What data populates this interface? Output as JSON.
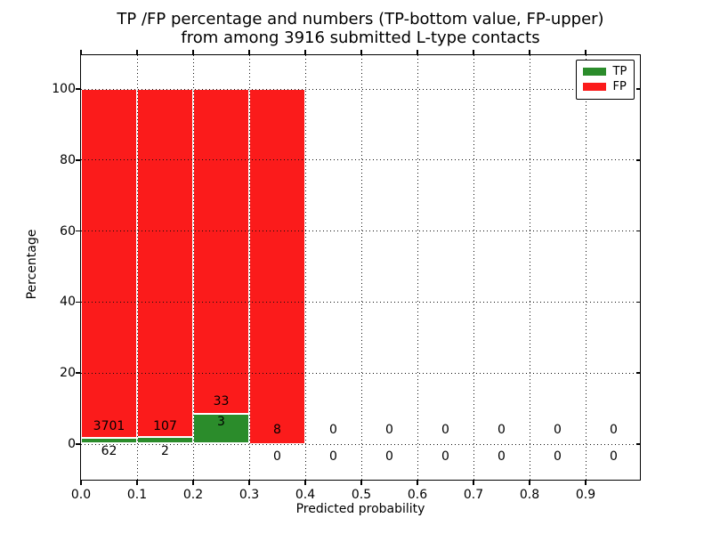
{
  "title": {
    "line1": "TP /FP percentage and numbers (TP-bottom value, FP-upper)",
    "line2": "from among 3916 submitted L-type contacts"
  },
  "axes": {
    "xlabel": "Predicted probability",
    "ylabel": "Percentage",
    "x_ticks": [
      "0.0",
      "0.1",
      "0.2",
      "0.3",
      "0.4",
      "0.5",
      "0.6",
      "0.7",
      "0.8",
      "0.9"
    ],
    "y_ticks": [
      "0",
      "20",
      "40",
      "60",
      "80",
      "100"
    ]
  },
  "legend": [
    {
      "label": "TP",
      "color": "#2b8c2b"
    },
    {
      "label": "FP",
      "color": "#fb1b1b"
    }
  ],
  "colors": {
    "tp_green": "#2b8c2b",
    "fp_red": "#fb1b1b",
    "grid": "#0d0d0d",
    "background": "#ffffff"
  },
  "chart_data": {
    "type": "bar",
    "stacked": true,
    "title": "TP /FP percentage and numbers (TP-bottom value, FP-upper) from among 3916 submitted L-type contacts",
    "xlabel": "Predicted probability",
    "ylabel": "Percentage",
    "total_contacts": 3916,
    "bin_starts": [
      0.0,
      0.1,
      0.2,
      0.3,
      0.4,
      0.5,
      0.6,
      0.7,
      0.8,
      0.9
    ],
    "bin_width": 0.1,
    "series": [
      {
        "name": "TP",
        "counts": [
          62,
          2,
          3,
          0,
          0,
          0,
          0,
          0,
          0,
          0
        ],
        "percent": [
          1.65,
          1.83,
          8.33,
          0,
          0,
          0,
          0,
          0,
          0,
          0
        ]
      },
      {
        "name": "FP",
        "counts": [
          3701,
          107,
          33,
          8,
          0,
          0,
          0,
          0,
          0,
          0
        ],
        "percent": [
          98.35,
          98.17,
          91.67,
          100,
          0,
          0,
          0,
          0,
          0,
          0
        ]
      }
    ],
    "annotations": {
      "fp_labels": [
        "3701",
        "107",
        "33",
        "8",
        "0",
        "0",
        "0",
        "0",
        "0",
        "0"
      ],
      "fp_label_y_pct": [
        5,
        5,
        12,
        4,
        4,
        4,
        4,
        4,
        4,
        4
      ],
      "tp_labels": [
        "62",
        "2",
        "3",
        "0",
        "0",
        "0",
        "0",
        "0",
        "0",
        "0"
      ],
      "tp_label_y_pct": [
        -2,
        -2,
        6.3,
        -3.4,
        -3.4,
        -3.4,
        -3.4,
        -3.4,
        -3.4,
        -3.4
      ]
    },
    "xlim": [
      0.0,
      1.0
    ],
    "ylim": [
      -10,
      110
    ],
    "grid": "dotted both axes",
    "legend_position": "upper right"
  }
}
